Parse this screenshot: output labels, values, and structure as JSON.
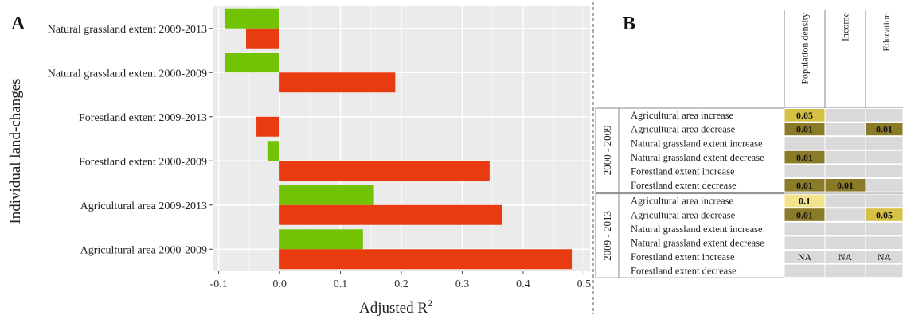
{
  "panel_a": {
    "label": "A",
    "chart_data": {
      "type": "bar",
      "orientation": "horizontal",
      "title": "",
      "xlabel": "Adjusted R",
      "xlabel_superscript": "2",
      "ylabel": "Individual land-changes",
      "xlim": [
        -0.11,
        0.51
      ],
      "x_ticks": [
        -0.1,
        0.0,
        0.1,
        0.2,
        0.3,
        0.4,
        0.5
      ],
      "x_tick_labels": [
        "-0.1",
        "0.0",
        "0.1",
        "0.2",
        "0.3",
        "0.4",
        "0.5"
      ],
      "grid": true,
      "legend": "none",
      "categories": [
        "Natural grassland extent 2009-2013",
        "Natural grassland extent 2000-2009",
        "Forestland extent 2009-2013",
        "Forestland extent 2000-2009",
        "Agricultural area 2009-2013",
        "Agricultural area 2000-2009"
      ],
      "series": [
        {
          "color": "#72c304",
          "values": [
            -0.09,
            -0.09,
            0.0,
            -0.02,
            0.155,
            0.137
          ]
        },
        {
          "color": "#e83b0f",
          "values": [
            -0.055,
            0.19,
            -0.038,
            0.345,
            0.365,
            0.48
          ]
        }
      ]
    }
  },
  "panel_b": {
    "label": "B",
    "chart_data": {
      "type": "table",
      "columns": [
        "Population density",
        "Income",
        "Education"
      ],
      "groups": [
        {
          "name": "2000 - 2009",
          "rows": [
            {
              "label": "Agricultural area increase",
              "cells": [
                "0.05",
                "",
                ""
              ]
            },
            {
              "label": "Agricultural area decrease",
              "cells": [
                "0.01",
                "",
                "0.01"
              ]
            },
            {
              "label": "Natural grassland extent increase",
              "cells": [
                "",
                "",
                ""
              ]
            },
            {
              "label": "Natural grassland extent decrease",
              "cells": [
                "0.01",
                "",
                ""
              ]
            },
            {
              "label": "Forestland extent increase",
              "cells": [
                "",
                "",
                ""
              ]
            },
            {
              "label": "Forestland extent decrease",
              "cells": [
                "0.01",
                "0.01",
                ""
              ]
            }
          ]
        },
        {
          "name": "2009 - 2013",
          "rows": [
            {
              "label": "Agricultural area increase",
              "cells": [
                "0.1",
                "",
                ""
              ]
            },
            {
              "label": "Agricultural area decrease",
              "cells": [
                "0.01",
                "",
                "0.05"
              ]
            },
            {
              "label": "Natural grassland extent increase",
              "cells": [
                "",
                "",
                ""
              ]
            },
            {
              "label": "Natural grassland extent decrease",
              "cells": [
                "",
                "",
                ""
              ]
            },
            {
              "label": "Forestland extent increase",
              "cells": [
                "NA",
                "NA",
                "NA"
              ]
            },
            {
              "label": "Forestland extent decrease",
              "cells": [
                "",
                "",
                ""
              ]
            }
          ]
        }
      ],
      "cell_colors": {
        "0.01": "#8b7a28",
        "0.05": "#d6c146",
        "0.1": "#f2e38c",
        "NA": "#d9d9d9",
        "": "#d9d9d9"
      }
    }
  }
}
